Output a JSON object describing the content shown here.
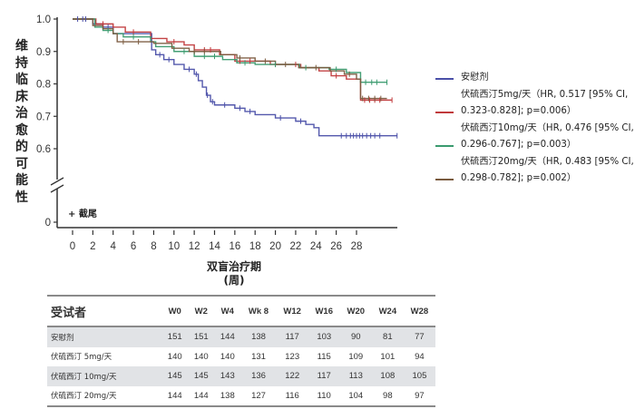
{
  "chart_data": {
    "type": "line",
    "subtype": "kaplan-meier",
    "title": "",
    "ylabel": "维持临床治愈的可能性",
    "xlabel": "双盲治疗期",
    "xlabel_unit": "(周)",
    "xlim": [
      0,
      32
    ],
    "xticks": [
      0,
      2,
      4,
      6,
      8,
      10,
      12,
      14,
      16,
      18,
      20,
      22,
      24,
      26,
      28
    ],
    "ylim_upper": [
      0.6,
      1.0
    ],
    "y_axis_break": true,
    "yticks": [
      "1.0",
      "0.9",
      "0.8",
      "0.7",
      "0.6",
      "0"
    ],
    "ytick_values": [
      1.0,
      0.9,
      0.8,
      0.7,
      0.6,
      0
    ],
    "grid": false,
    "censor_note": "+ 截尾",
    "legend_position": "right",
    "series": [
      {
        "name": "安慰剂",
        "label_lines": [
          "安慰剂"
        ],
        "color": "#4a4fa8",
        "steps": [
          [
            0,
            1.0
          ],
          [
            2,
            0.985
          ],
          [
            3,
            0.975
          ],
          [
            4,
            0.955
          ],
          [
            7.8,
            0.905
          ],
          [
            8.2,
            0.89
          ],
          [
            9,
            0.875
          ],
          [
            10,
            0.86
          ],
          [
            11,
            0.845
          ],
          [
            12,
            0.83
          ],
          [
            12.4,
            0.81
          ],
          [
            12.8,
            0.79
          ],
          [
            13.2,
            0.765
          ],
          [
            13.6,
            0.745
          ],
          [
            14,
            0.735
          ],
          [
            16,
            0.725
          ],
          [
            17,
            0.715
          ],
          [
            18,
            0.705
          ],
          [
            20,
            0.695
          ],
          [
            22,
            0.685
          ],
          [
            23,
            0.675
          ],
          [
            23.8,
            0.665
          ],
          [
            24.3,
            0.64
          ],
          [
            32,
            0.64
          ]
        ],
        "censor_weeks": [
          0.5,
          1,
          1.3,
          3.5,
          8.6,
          9.5,
          11.5,
          12.2,
          13.3,
          13.8,
          15,
          16.5,
          17.5,
          20.5,
          22.5,
          26.5,
          27,
          27.4,
          27.7,
          28,
          28.3,
          28.6,
          29,
          29.4,
          29.8,
          30.3,
          32
        ]
      },
      {
        "name": "伏硫西汀5mg/天",
        "label_lines": [
          "伏硫西汀5mg/天（HR, 0.517 [95% CI,",
          "0.323-0.828]; p=0.006）"
        ],
        "hr": 0.517,
        "ci": [
          0.323,
          0.828
        ],
        "p": 0.006,
        "color": "#c0393b",
        "steps": [
          [
            0,
            1.0
          ],
          [
            2.3,
            0.985
          ],
          [
            4,
            0.975
          ],
          [
            5.2,
            0.96
          ],
          [
            7.7,
            0.94
          ],
          [
            9.3,
            0.93
          ],
          [
            11,
            0.92
          ],
          [
            12,
            0.905
          ],
          [
            14.5,
            0.89
          ],
          [
            16,
            0.87
          ],
          [
            19.5,
            0.86
          ],
          [
            22.5,
            0.85
          ],
          [
            24.3,
            0.84
          ],
          [
            25.5,
            0.825
          ],
          [
            27,
            0.815
          ],
          [
            28.4,
            0.75
          ],
          [
            31.5,
            0.75
          ]
        ],
        "censor_weeks": [
          3,
          6,
          10,
          13,
          13.6,
          16.5,
          17.5,
          20,
          22,
          26,
          28.8,
          29.3,
          29.8,
          30.3,
          31.5
        ]
      },
      {
        "name": "伏硫西汀10mg/天",
        "label_lines": [
          "伏硫西汀10mg/天（HR, 0.476 [95% CI,",
          "0.296-0.767]; p=0.003）"
        ],
        "hr": 0.476,
        "ci": [
          0.296,
          0.767
        ],
        "p": 0.003,
        "color": "#3a9a6e",
        "steps": [
          [
            0,
            1.0
          ],
          [
            2.2,
            0.975
          ],
          [
            3,
            0.965
          ],
          [
            4,
            0.955
          ],
          [
            5,
            0.945
          ],
          [
            7.7,
            0.93
          ],
          [
            8.2,
            0.915
          ],
          [
            10,
            0.9
          ],
          [
            12,
            0.885
          ],
          [
            14.8,
            0.875
          ],
          [
            16.2,
            0.865
          ],
          [
            18,
            0.86
          ],
          [
            22.4,
            0.85
          ],
          [
            25.3,
            0.845
          ],
          [
            27,
            0.835
          ],
          [
            28.4,
            0.805
          ],
          [
            31,
            0.805
          ]
        ],
        "censor_weeks": [
          3.5,
          6,
          11,
          13,
          14,
          17,
          20,
          23,
          26,
          28.9,
          29.5,
          30,
          31
        ]
      },
      {
        "name": "伏硫西汀20mg/天",
        "label_lines": [
          "伏硫西汀20mg/天（HR, 0.483 [95% CI,",
          "0.298-0.782]; p=0.002）"
        ],
        "hr": 0.483,
        "ci": [
          0.298,
          0.782
        ],
        "p": 0.002,
        "color": "#7a5a3e",
        "steps": [
          [
            0,
            1.0
          ],
          [
            2,
            0.98
          ],
          [
            3,
            0.97
          ],
          [
            4,
            0.955
          ],
          [
            4.4,
            0.93
          ],
          [
            8,
            0.925
          ],
          [
            9.8,
            0.91
          ],
          [
            11.5,
            0.9
          ],
          [
            14.6,
            0.89
          ],
          [
            16.2,
            0.88
          ],
          [
            18,
            0.87
          ],
          [
            20,
            0.86
          ],
          [
            22.3,
            0.85
          ],
          [
            25.4,
            0.84
          ],
          [
            26.8,
            0.83
          ],
          [
            28,
            0.815
          ],
          [
            28.4,
            0.755
          ],
          [
            31,
            0.755
          ]
        ],
        "censor_weeks": [
          5,
          6.5,
          12,
          13,
          16.5,
          19,
          21,
          24,
          27.3,
          28.6,
          29.2,
          29.8,
          30.4
        ]
      }
    ]
  },
  "risk_table": {
    "header_label": "受试者",
    "columns": [
      "W0",
      "W2",
      "W4",
      "Wk 8",
      "W12",
      "W16",
      "W20",
      "W24",
      "W28"
    ],
    "rows": [
      {
        "label": "安慰剂",
        "values": [
          "151",
          "151",
          "144",
          "138",
          "117",
          "103",
          "90",
          "81",
          "77"
        ]
      },
      {
        "label": "伏硫西汀 5mg/天",
        "values": [
          "140",
          "140",
          "140",
          "131",
          "123",
          "115",
          "109",
          "101",
          "94"
        ]
      },
      {
        "label": "伏硫西汀 10mg/天",
        "values": [
          "145",
          "145",
          "143",
          "136",
          "122",
          "117",
          "113",
          "108",
          "105"
        ]
      },
      {
        "label": "伏硫西汀 20mg/天",
        "values": [
          "144",
          "144",
          "138",
          "127",
          "116",
          "110",
          "104",
          "98",
          "97"
        ]
      }
    ]
  }
}
